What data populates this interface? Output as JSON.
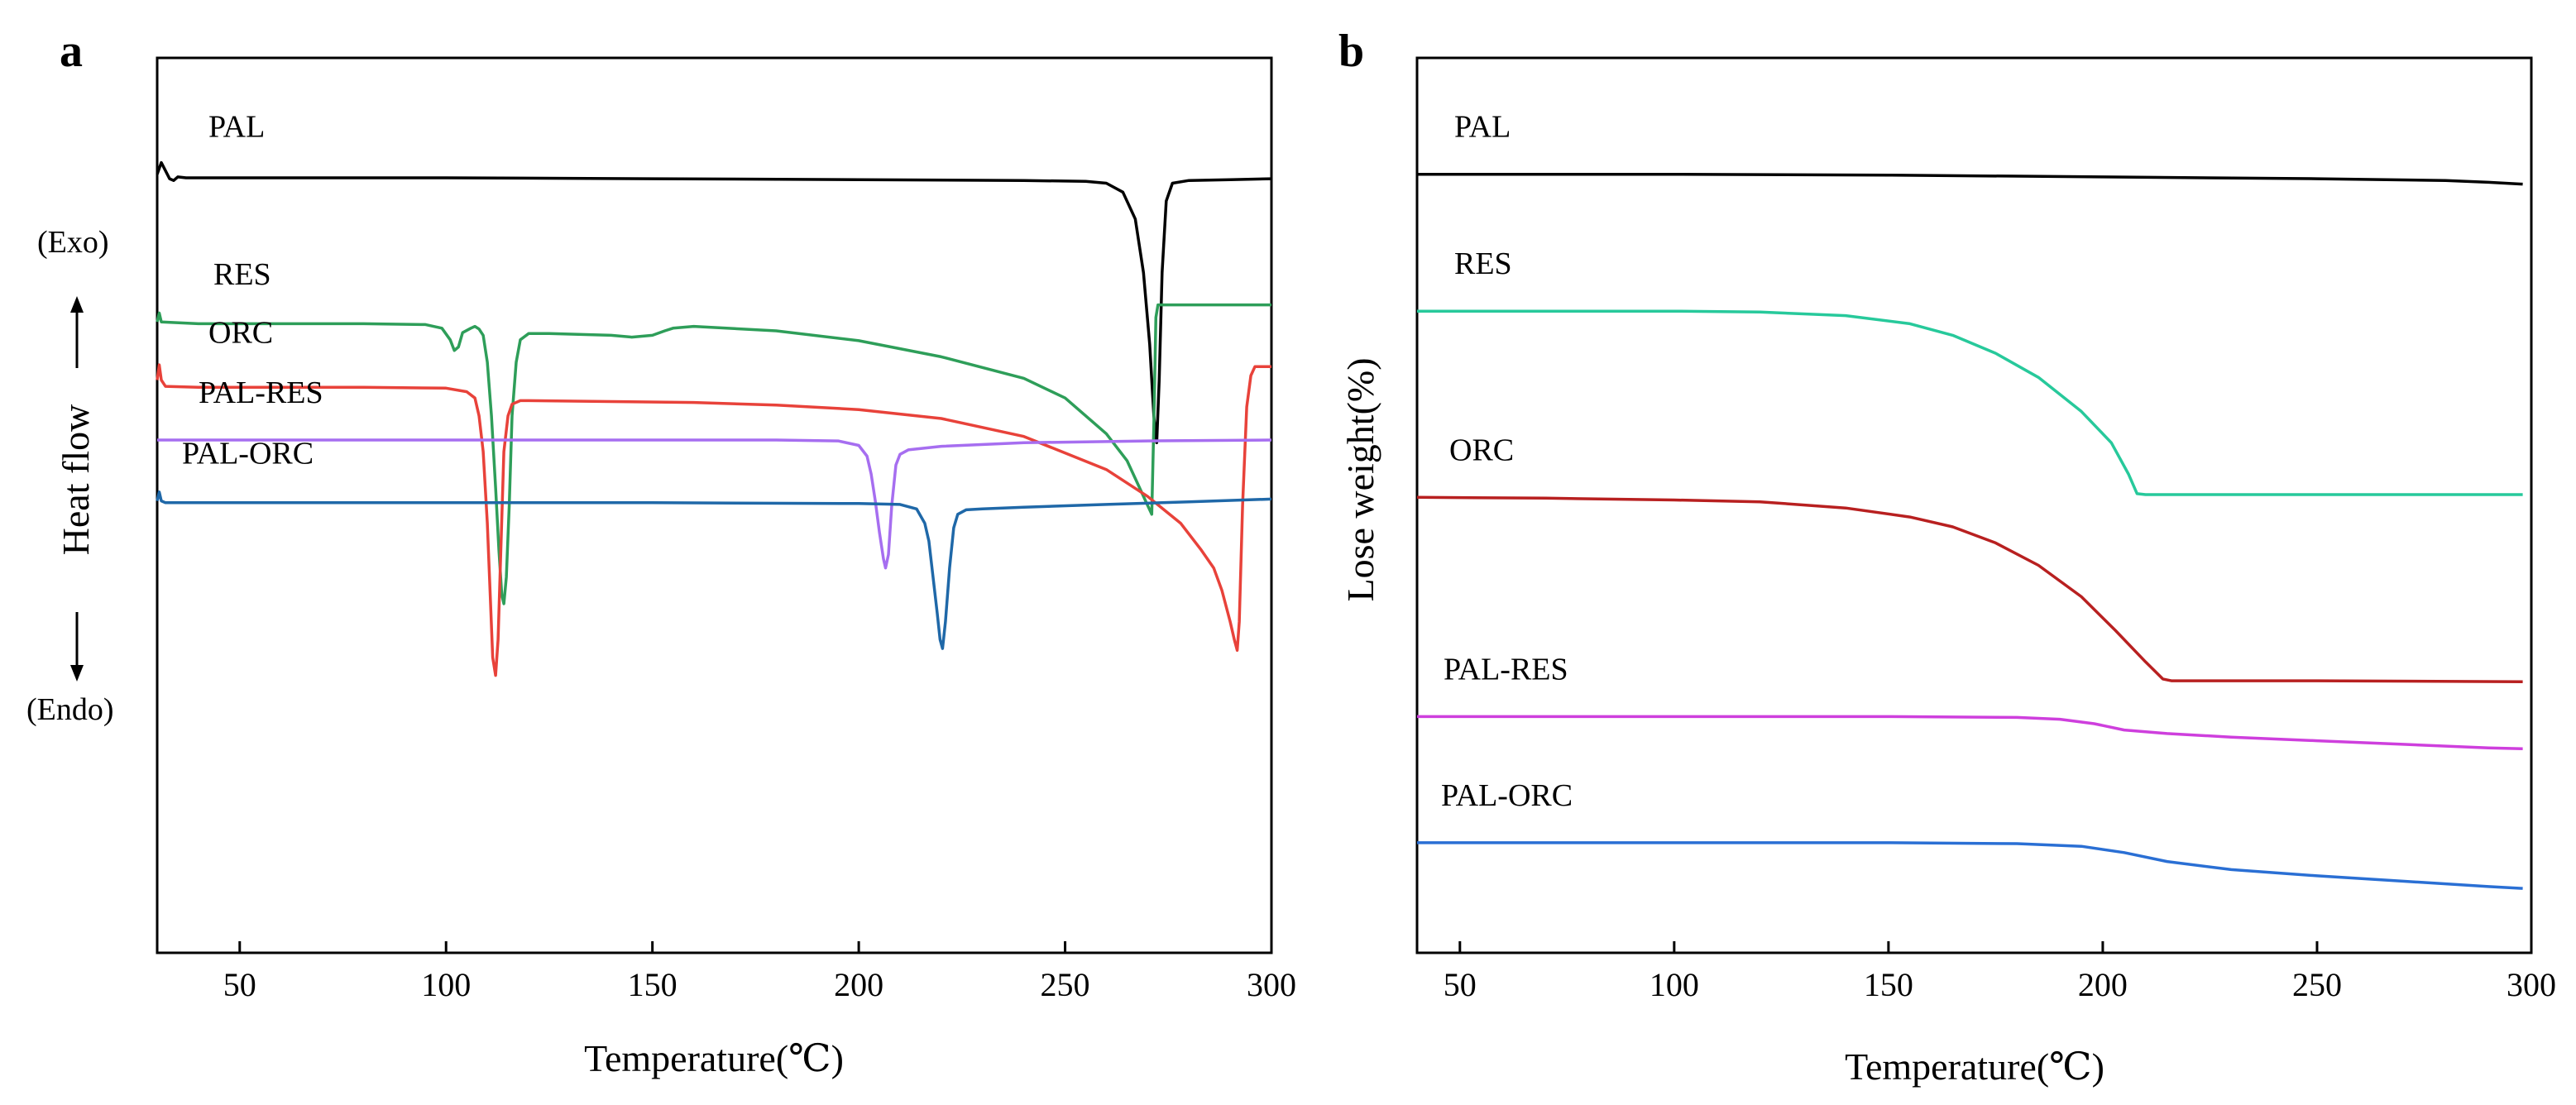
{
  "panels": [
    {
      "letter": "a",
      "xlabel": "Temperature(℃)",
      "ylabel": "Heat flow",
      "exo_label": "(Exo)",
      "endo_label": "(Endo)"
    },
    {
      "letter": "b",
      "xlabel": "Temperature(℃)",
      "ylabel": "Lose weight(%)"
    }
  ],
  "chart_data": [
    {
      "type": "line",
      "title": "",
      "xlabel": "Temperature(℃)",
      "ylabel": "Heat flow",
      "xlim": [
        30,
        300
      ],
      "ylim": [
        0,
        100
      ],
      "xticks": [
        50,
        100,
        150,
        200,
        250,
        300
      ],
      "yticks_shown": false,
      "grid": false,
      "legend": "inline labels above each curve",
      "y_direction_note": "up = Exo, down = Endo",
      "series": [
        {
          "name": "PAL",
          "color": "#000000",
          "points": [
            [
              30,
              87
            ],
            [
              31,
              88.3
            ],
            [
              32,
              87.4
            ],
            [
              33,
              86.5
            ],
            [
              34,
              86.3
            ],
            [
              35,
              86.7
            ],
            [
              37,
              86.6
            ],
            [
              60,
              86.6
            ],
            [
              100,
              86.6
            ],
            [
              150,
              86.5
            ],
            [
              200,
              86.4
            ],
            [
              240,
              86.3
            ],
            [
              255,
              86.2
            ],
            [
              260,
              86
            ],
            [
              264,
              85
            ],
            [
              267,
              82
            ],
            [
              269,
              76
            ],
            [
              270.5,
              68
            ],
            [
              271.5,
              60
            ],
            [
              272.2,
              57
            ],
            [
              272.8,
              64
            ],
            [
              273.5,
              76
            ],
            [
              274.5,
              84
            ],
            [
              276,
              86
            ],
            [
              280,
              86.3
            ],
            [
              290,
              86.4
            ],
            [
              300,
              86.5
            ]
          ]
        },
        {
          "name": "RES",
          "color": "#2e9e59",
          "points": [
            [
              30,
              70.5
            ],
            [
              30.5,
              71.5
            ],
            [
              31,
              70.5
            ],
            [
              40,
              70.3
            ],
            [
              60,
              70.3
            ],
            [
              80,
              70.3
            ],
            [
              95,
              70.2
            ],
            [
              99,
              69.8
            ],
            [
              101,
              68.5
            ],
            [
              102,
              67.3
            ],
            [
              103,
              67.7
            ],
            [
              104,
              69.3
            ],
            [
              106,
              69.8
            ],
            [
              107,
              70
            ],
            [
              108,
              69.7
            ],
            [
              109,
              69
            ],
            [
              110,
              66
            ],
            [
              111,
              60
            ],
            [
              112,
              52
            ],
            [
              112.8,
              45
            ],
            [
              113.5,
              40
            ],
            [
              114,
              39
            ],
            [
              114.6,
              42
            ],
            [
              115.3,
              50
            ],
            [
              116,
              60
            ],
            [
              117,
              66
            ],
            [
              118,
              68.5
            ],
            [
              120,
              69.2
            ],
            [
              125,
              69.2
            ],
            [
              140,
              69
            ],
            [
              145,
              68.8
            ],
            [
              150,
              69
            ],
            [
              153,
              69.5
            ],
            [
              155,
              69.8
            ],
            [
              160,
              70
            ],
            [
              180,
              69.5
            ],
            [
              200,
              68.4
            ],
            [
              220,
              66.6
            ],
            [
              240,
              64.2
            ],
            [
              250,
              62
            ],
            [
              260,
              58
            ],
            [
              265,
              55
            ],
            [
              268,
              52
            ],
            [
              270,
              50
            ],
            [
              271,
              49
            ],
            [
              271.5,
              59
            ],
            [
              272,
              71
            ],
            [
              272.5,
              72.4
            ],
            [
              280,
              72.4
            ],
            [
              300,
              72.4
            ]
          ]
        },
        {
          "name": "ORC",
          "color": "#e8423a",
          "points": [
            [
              30,
              64
            ],
            [
              30.5,
              65.7
            ],
            [
              31,
              64
            ],
            [
              32,
              63.3
            ],
            [
              40,
              63.2
            ],
            [
              60,
              63.2
            ],
            [
              80,
              63.2
            ],
            [
              100,
              63.1
            ],
            [
              105,
              62.7
            ],
            [
              107,
              62
            ],
            [
              108,
              60
            ],
            [
              109,
              56
            ],
            [
              110,
              48
            ],
            [
              110.7,
              40
            ],
            [
              111.3,
              33
            ],
            [
              112,
              31
            ],
            [
              112.6,
              35
            ],
            [
              113.2,
              44
            ],
            [
              114,
              56
            ],
            [
              115,
              60
            ],
            [
              116,
              61.3
            ],
            [
              118,
              61.7
            ],
            [
              120,
              61.7
            ],
            [
              140,
              61.6
            ],
            [
              160,
              61.5
            ],
            [
              180,
              61.2
            ],
            [
              200,
              60.7
            ],
            [
              220,
              59.7
            ],
            [
              240,
              57.7
            ],
            [
              260,
              54
            ],
            [
              270,
              51
            ],
            [
              278,
              48
            ],
            [
              283,
              45
            ],
            [
              286,
              43
            ],
            [
              288,
              40.5
            ],
            [
              290,
              37
            ],
            [
              291,
              35
            ],
            [
              291.7,
              33.8
            ],
            [
              292.2,
              37
            ],
            [
              293,
              50
            ],
            [
              294,
              61
            ],
            [
              295,
              64.5
            ],
            [
              296,
              65.5
            ],
            [
              297,
              65.5
            ],
            [
              300,
              65.5
            ]
          ]
        },
        {
          "name": "PAL-RES",
          "color": "#a66ef0",
          "points": [
            [
              30,
              57.3
            ],
            [
              40,
              57.3
            ],
            [
              60,
              57.3
            ],
            [
              100,
              57.3
            ],
            [
              150,
              57.3
            ],
            [
              180,
              57.3
            ],
            [
              195,
              57.2
            ],
            [
              200,
              56.7
            ],
            [
              202,
              55.5
            ],
            [
              203,
              53.5
            ],
            [
              204,
              50.5
            ],
            [
              205,
              47
            ],
            [
              206,
              44
            ],
            [
              206.5,
              43
            ],
            [
              207.2,
              44.5
            ],
            [
              208,
              50
            ],
            [
              209,
              54.5
            ],
            [
              210,
              55.7
            ],
            [
              212,
              56.2
            ],
            [
              220,
              56.6
            ],
            [
              240,
              57
            ],
            [
              270,
              57.2
            ],
            [
              300,
              57.3
            ]
          ]
        },
        {
          "name": "PAL-ORC",
          "color": "#1f68a8",
          "points": [
            [
              30,
              50.5
            ],
            [
              30.5,
              51.5
            ],
            [
              31,
              50.5
            ],
            [
              32,
              50.3
            ],
            [
              40,
              50.3
            ],
            [
              60,
              50.3
            ],
            [
              100,
              50.3
            ],
            [
              150,
              50.3
            ],
            [
              200,
              50.2
            ],
            [
              210,
              50.1
            ],
            [
              214,
              49.6
            ],
            [
              216,
              48
            ],
            [
              217,
              46
            ],
            [
              218,
              42
            ],
            [
              219,
              38
            ],
            [
              219.7,
              35
            ],
            [
              220.3,
              34
            ],
            [
              221,
              37
            ],
            [
              222,
              43
            ],
            [
              223,
              47.5
            ],
            [
              224,
              49
            ],
            [
              226,
              49.5
            ],
            [
              230,
              49.6
            ],
            [
              240,
              49.8
            ],
            [
              260,
              50.1
            ],
            [
              280,
              50.4
            ],
            [
              300,
              50.7
            ]
          ]
        }
      ]
    },
    {
      "type": "line",
      "title": "",
      "xlabel": "Temperature(℃)",
      "ylabel": "Lose weight(%)",
      "xlim": [
        40,
        300
      ],
      "ylim": [
        0,
        100
      ],
      "xticks": [
        50,
        100,
        150,
        200,
        250,
        300
      ],
      "yticks_shown": false,
      "grid": false,
      "legend": "inline labels above each curve",
      "series": [
        {
          "name": "PAL",
          "color": "#000000",
          "points": [
            [
              40,
              87
            ],
            [
              100,
              87
            ],
            [
              150,
              86.9
            ],
            [
              200,
              86.7
            ],
            [
              250,
              86.5
            ],
            [
              280,
              86.3
            ],
            [
              290,
              86.1
            ],
            [
              298,
              85.9
            ]
          ]
        },
        {
          "name": "RES",
          "color": "#27c99b",
          "points": [
            [
              40,
              71.7
            ],
            [
              100,
              71.7
            ],
            [
              120,
              71.6
            ],
            [
              140,
              71.2
            ],
            [
              155,
              70.3
            ],
            [
              165,
              69
            ],
            [
              175,
              67
            ],
            [
              185,
              64.3
            ],
            [
              195,
              60.5
            ],
            [
              202,
              57
            ],
            [
              206,
              53.5
            ],
            [
              208,
              51.3
            ],
            [
              210,
              51.2
            ],
            [
              250,
              51.2
            ],
            [
              298,
              51.2
            ]
          ]
        },
        {
          "name": "ORC",
          "color": "#b82020",
          "points": [
            [
              40,
              50.9
            ],
            [
              70,
              50.8
            ],
            [
              100,
              50.6
            ],
            [
              120,
              50.4
            ],
            [
              140,
              49.7
            ],
            [
              155,
              48.7
            ],
            [
              165,
              47.6
            ],
            [
              175,
              45.8
            ],
            [
              185,
              43.3
            ],
            [
              195,
              39.8
            ],
            [
              203,
              36
            ],
            [
              210,
              32.5
            ],
            [
              214,
              30.6
            ],
            [
              216,
              30.4
            ],
            [
              250,
              30.4
            ],
            [
              298,
              30.3
            ]
          ]
        },
        {
          "name": "PAL-RES",
          "color": "#ce3fdd",
          "points": [
            [
              40,
              26.4
            ],
            [
              100,
              26.4
            ],
            [
              150,
              26.4
            ],
            [
              180,
              26.3
            ],
            [
              190,
              26.1
            ],
            [
              198,
              25.6
            ],
            [
              205,
              24.9
            ],
            [
              215,
              24.5
            ],
            [
              230,
              24.1
            ],
            [
              250,
              23.7
            ],
            [
              270,
              23.3
            ],
            [
              290,
              22.9
            ],
            [
              298,
              22.8
            ]
          ]
        },
        {
          "name": "PAL-ORC",
          "color": "#2a6fd4",
          "points": [
            [
              40,
              12.3
            ],
            [
              100,
              12.3
            ],
            [
              150,
              12.3
            ],
            [
              180,
              12.2
            ],
            [
              195,
              11.9
            ],
            [
              205,
              11.2
            ],
            [
              215,
              10.2
            ],
            [
              230,
              9.3
            ],
            [
              250,
              8.6
            ],
            [
              270,
              8
            ],
            [
              290,
              7.4
            ],
            [
              298,
              7.2
            ]
          ]
        }
      ]
    }
  ]
}
